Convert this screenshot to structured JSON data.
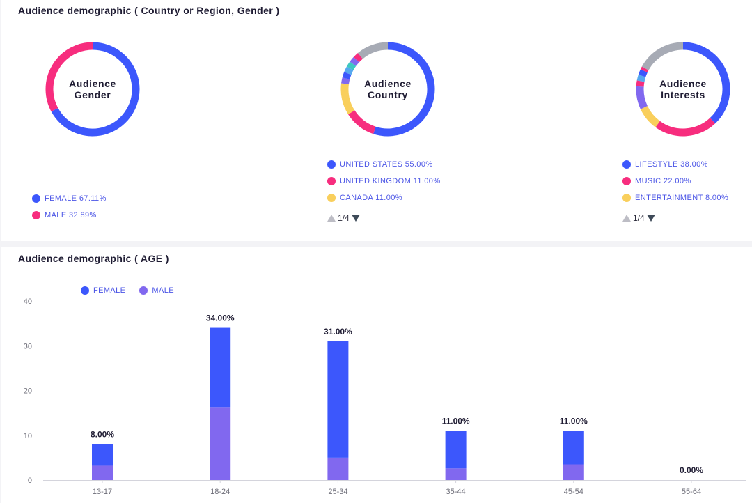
{
  "colors": {
    "blue": "#3c57fc",
    "pink": "#f72d7e",
    "yellow": "#f9cf5c",
    "purple": "#8168ef",
    "gray": "#a7abb5",
    "teal": "#3ec7c2",
    "light_blue": "#56a8ee"
  },
  "top_panel": {
    "title": "Audience demographic ( Country or Region, Gender )",
    "gender": {
      "label_line1": "Audience",
      "label_line2": "Gender",
      "legend": [
        {
          "label": "FEMALE 67.11%",
          "color": "#3c57fc"
        },
        {
          "label": "MALE 32.89%",
          "color": "#f72d7e"
        }
      ]
    },
    "country": {
      "label_line1": "Audience",
      "label_line2": "Country",
      "legend": [
        {
          "label": "UNITED STATES 55.00%",
          "color": "#3c57fc"
        },
        {
          "label": "UNITED KINGDOM 11.00%",
          "color": "#f72d7e"
        },
        {
          "label": "CANADA 11.00%",
          "color": "#f9cf5c"
        }
      ],
      "pager": "1/4"
    },
    "interests": {
      "label_line1": "Audience",
      "label_line2": "Interests",
      "legend": [
        {
          "label": "LIFESTYLE 38.00%",
          "color": "#3c57fc"
        },
        {
          "label": "MUSIC 22.00%",
          "color": "#f72d7e"
        },
        {
          "label": "ENTERTAINMENT 8.00%",
          "color": "#f9cf5c"
        }
      ],
      "pager": "1/4"
    }
  },
  "bottom_panel": {
    "title": "Audience demographic ( AGE )",
    "legend": [
      {
        "label": "FEMALE",
        "color": "#3c57fc"
      },
      {
        "label": "MALE",
        "color": "#8168ef"
      }
    ]
  },
  "chart_data": [
    {
      "type": "pie",
      "title": "Audience Gender",
      "donut": true,
      "slices": [
        {
          "label": "FEMALE",
          "value": 67.11,
          "color": "#3c57fc"
        },
        {
          "label": "MALE",
          "value": 32.89,
          "color": "#f72d7e"
        }
      ]
    },
    {
      "type": "pie",
      "title": "Audience Country",
      "donut": true,
      "slices": [
        {
          "label": "UNITED STATES",
          "value": 55,
          "color": "#3c57fc"
        },
        {
          "label": "UNITED KINGDOM",
          "value": 11,
          "color": "#f72d7e"
        },
        {
          "label": "CANADA",
          "value": 11,
          "color": "#f9cf5c"
        },
        {
          "label": "",
          "value": 2,
          "color": "#8168ef"
        },
        {
          "label": "",
          "value": 2,
          "color": "#3c57fc"
        },
        {
          "label": "",
          "value": 2,
          "color": "#56a8ee"
        },
        {
          "label": "",
          "value": 2,
          "color": "#3ec7c2"
        },
        {
          "label": "",
          "value": 2,
          "color": "#8168ef"
        },
        {
          "label": "",
          "value": 2,
          "color": "#f72d7e"
        },
        {
          "label": "",
          "value": 11,
          "color": "#a7abb5"
        }
      ]
    },
    {
      "type": "pie",
      "title": "Audience Interests",
      "donut": true,
      "slices": [
        {
          "label": "LIFESTYLE",
          "value": 38,
          "color": "#3c57fc"
        },
        {
          "label": "MUSIC",
          "value": 22,
          "color": "#f72d7e"
        },
        {
          "label": "ENTERTAINMENT",
          "value": 8,
          "color": "#f9cf5c"
        },
        {
          "label": "",
          "value": 8,
          "color": "#8168ef"
        },
        {
          "label": "",
          "value": 2,
          "color": "#f72d7e"
        },
        {
          "label": "",
          "value": 2,
          "color": "#56a8ee"
        },
        {
          "label": "",
          "value": 2,
          "color": "#3c57fc"
        },
        {
          "label": "",
          "value": 1,
          "color": "#f72d7e"
        },
        {
          "label": "",
          "value": 17,
          "color": "#a7abb5"
        }
      ]
    },
    {
      "type": "bar",
      "stacked": true,
      "title": "Audience demographic ( AGE )",
      "categories": [
        "13-17",
        "18-24",
        "25-34",
        "35-44",
        "45-54",
        "55-64"
      ],
      "series": [
        {
          "name": "MALE",
          "values": [
            3.2,
            16.3,
            5.0,
            2.6,
            3.5,
            0
          ],
          "color": "#8168ef"
        },
        {
          "name": "FEMALE",
          "values": [
            4.8,
            17.7,
            26.0,
            8.4,
            7.5,
            0
          ],
          "color": "#3c57fc"
        }
      ],
      "totals": [
        8,
        34,
        31,
        11,
        11,
        0
      ],
      "total_labels": [
        "8.00%",
        "34.00%",
        "31.00%",
        "11.00%",
        "11.00%",
        "0.00%"
      ],
      "ylim": [
        0,
        40
      ],
      "yticks": [
        0,
        10,
        20,
        30,
        40
      ],
      "grid": false
    }
  ]
}
